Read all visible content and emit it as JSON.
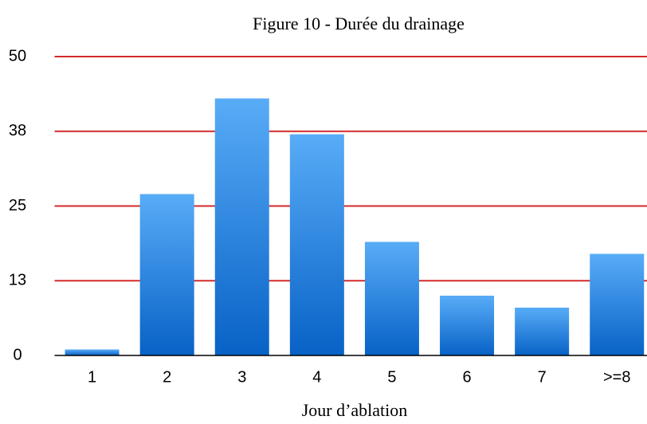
{
  "chart_data": {
    "type": "bar",
    "title": "Figure 10 - Durée du drainage",
    "x_label": "Jour d’ablation",
    "categories": [
      "1",
      "2",
      "3",
      "4",
      "5",
      "6",
      "7",
      ">=8"
    ],
    "values": [
      1,
      27,
      43,
      37,
      19,
      10,
      8,
      17
    ],
    "color": [
      "#58acf7",
      "#0862c6"
    ],
    "ylim": [
      0,
      50
    ],
    "yticks": [
      0,
      {
        "value": 12.5,
        "label": "13"
      },
      25,
      {
        "value": 37.5,
        "label": "38"
      },
      50
    ],
    "grid": true,
    "grid_color": "#d42a2a"
  }
}
